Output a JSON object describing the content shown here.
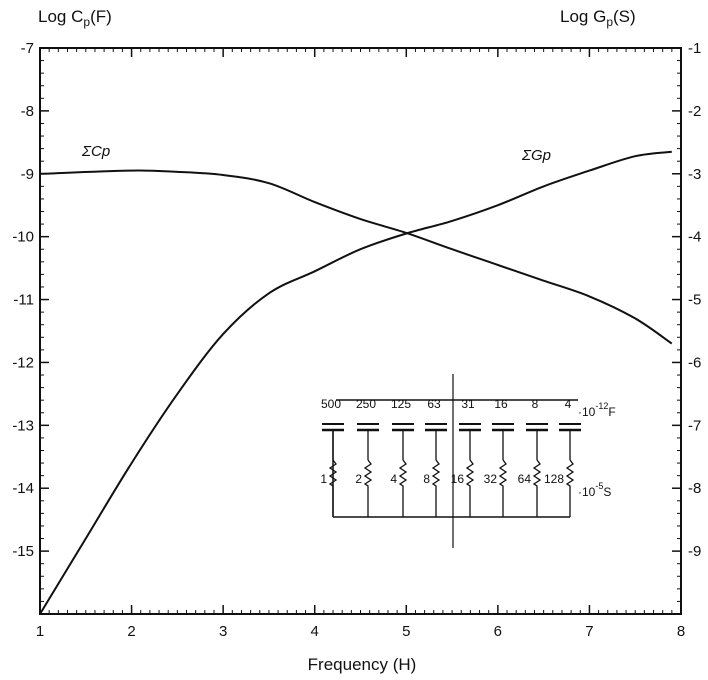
{
  "chart_data": {
    "type": "line",
    "left_axis_title_main": "Log C",
    "left_axis_title_sub": "p",
    "left_axis_title_unit": "(F)",
    "right_axis_title_main": "Log G",
    "right_axis_title_sub": "p",
    "right_axis_title_unit": "(S)",
    "xlabel": "Frequency (H)",
    "xlim": [
      1,
      8
    ],
    "ylim_left": [
      -16,
      -7
    ],
    "ylim_right": [
      -10,
      -1
    ],
    "x_ticks": [
      "1",
      "2",
      "3",
      "4",
      "5",
      "6",
      "7",
      "8"
    ],
    "left_ticks": [
      "-7",
      "-8",
      "-9",
      "-10",
      "-11",
      "-12",
      "-13",
      "-14",
      "-15"
    ],
    "right_ticks": [
      "-1",
      "-2",
      "-3",
      "-4",
      "-5",
      "-6",
      "-7",
      "-8",
      "-9"
    ],
    "grid": false,
    "series": [
      {
        "name": "ΣCp",
        "axis": "left",
        "x": [
          1.0,
          2.0,
          2.5,
          3.0,
          3.5,
          4.0,
          4.5,
          5.0,
          5.5,
          6.0,
          6.5,
          7.0,
          7.5,
          7.9
        ],
        "y": [
          -9.0,
          -8.95,
          -8.97,
          -9.02,
          -9.15,
          -9.45,
          -9.72,
          -9.94,
          -10.2,
          -10.45,
          -10.7,
          -10.95,
          -11.3,
          -11.7
        ]
      },
      {
        "name": "ΣGp",
        "axis": "right",
        "x": [
          1.0,
          1.5,
          2.0,
          2.5,
          3.0,
          3.5,
          4.0,
          4.5,
          5.0,
          5.5,
          6.0,
          6.5,
          7.0,
          7.5,
          7.9
        ],
        "y": [
          -10.0,
          -8.8,
          -7.6,
          -6.5,
          -5.55,
          -4.9,
          -4.55,
          -4.2,
          -3.95,
          -3.75,
          -3.5,
          -3.2,
          -2.95,
          -2.72,
          -2.65
        ]
      }
    ],
    "inset": {
      "capacitor_values": [
        "500",
        "250",
        "125",
        "63",
        "31",
        "16",
        "8",
        "4"
      ],
      "capacitor_unit_main": "·10",
      "capacitor_unit_exp": "-12",
      "capacitor_unit_suffix": "F",
      "conductance_values": [
        "1",
        "2",
        "4",
        "8",
        "16",
        "32",
        "64",
        "128"
      ],
      "conductance_unit_main": "·10",
      "conductance_unit_exp": "-5",
      "conductance_unit_suffix": "S"
    }
  }
}
